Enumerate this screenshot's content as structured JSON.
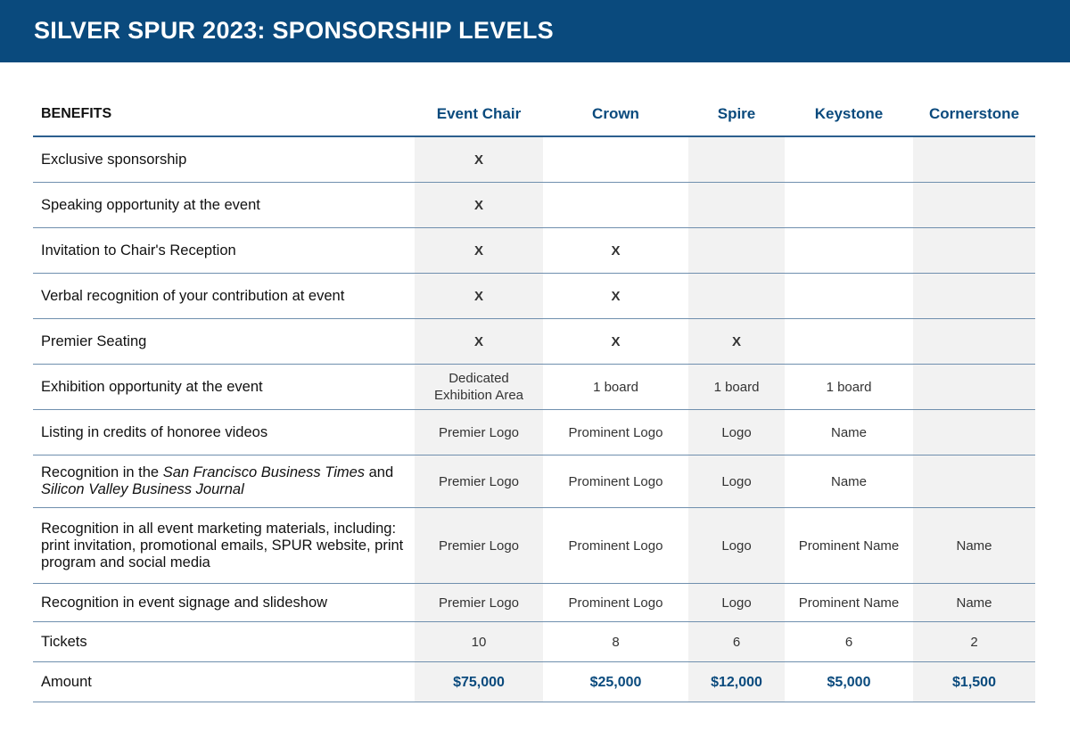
{
  "title": "SILVER SPUR 2023: SPONSORSHIP LEVELS",
  "columns": [
    "BENEFITS",
    "Event Chair",
    "Crown",
    "Spire",
    "Keystone",
    "Cornerstone"
  ],
  "rows": [
    {
      "benefit": "Exclusive sponsorship",
      "cells": [
        "X",
        "",
        "",
        "",
        ""
      ]
    },
    {
      "benefit": "Speaking opportunity at the event",
      "cells": [
        "X",
        "",
        "",
        "",
        ""
      ]
    },
    {
      "benefit": "Invitation to Chair's Reception",
      "cells": [
        "X",
        "X",
        "",
        "",
        ""
      ]
    },
    {
      "benefit": "Verbal recognition of your contribution at event",
      "cells": [
        "X",
        "X",
        "",
        "",
        ""
      ]
    },
    {
      "benefit": "Premier Seating",
      "cells": [
        "X",
        "X",
        "X",
        "",
        ""
      ]
    },
    {
      "benefit": "Exhibition opportunity at the event",
      "cells": [
        "Dedicated Exhibition Area",
        "1 board",
        "1 board",
        "1 board",
        ""
      ]
    },
    {
      "benefit": "Listing in credits of honoree videos",
      "cells": [
        "Premier Logo",
        "Prominent Logo",
        "Logo",
        "Name",
        ""
      ]
    },
    {
      "benefit_parts": [
        "Recognition in the ",
        "San Francisco Business Times",
        " and ",
        "Silicon Valley Business Journal"
      ],
      "cells": [
        "Premier Logo",
        "Prominent Logo",
        "Logo",
        "Name",
        ""
      ]
    },
    {
      "benefit": "Recognition in all event marketing materials, including: print invitation, promotional emails, SPUR website, print program and social media",
      "cells": [
        "Premier Logo",
        "Prominent Logo",
        "Logo",
        "Prominent Name",
        "Name"
      ]
    },
    {
      "benefit": "Recognition in event signage and slideshow",
      "cells": [
        "Premier Logo",
        "Prominent Logo",
        "Logo",
        "Prominent Name",
        "Name"
      ]
    },
    {
      "benefit": "Tickets",
      "cells": [
        "10",
        "8",
        "6",
        "6",
        "2"
      ]
    },
    {
      "benefit": "Amount",
      "cells": [
        "$75,000",
        "$25,000",
        "$12,000",
        "$5,000",
        "$1,500"
      ]
    }
  ]
}
